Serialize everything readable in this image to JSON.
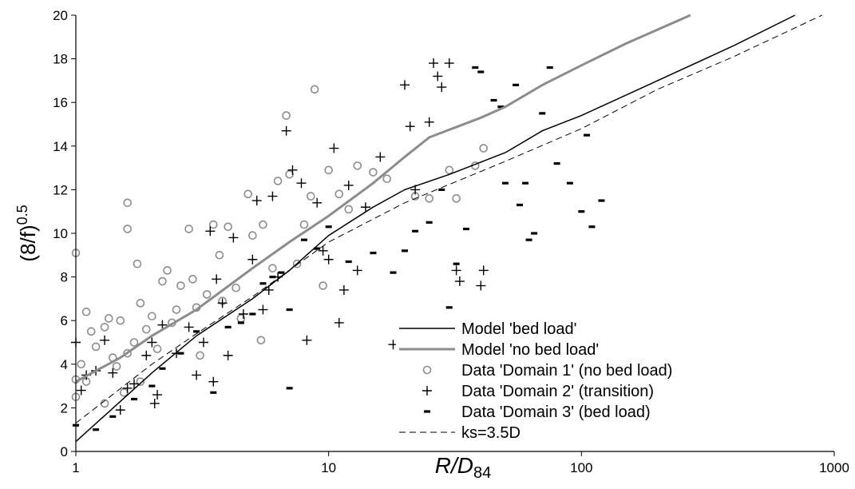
{
  "chart_data": {
    "type": "scatter",
    "xlabel": "R/D",
    "xlabel_sub": "84",
    "ylabel": "(8/f)",
    "ylabel_sup": "0.5",
    "xscale": "log",
    "xlim": [
      1,
      1000
    ],
    "xticks": [
      1,
      10,
      100,
      1000
    ],
    "ylim": [
      0,
      20
    ],
    "yticks": [
      0,
      2,
      4,
      6,
      8,
      10,
      12,
      14,
      16,
      18,
      20
    ],
    "grid": false,
    "legend": "lower right",
    "series": [
      {
        "name": "Model 'bed load'",
        "kind": "line",
        "dash": "solid",
        "line_width": 1.5,
        "color": "#000000",
        "x": [
          1,
          2,
          3,
          5,
          7,
          10,
          15,
          20,
          30,
          50,
          70,
          100,
          200,
          400,
          700
        ],
        "values": [
          0.45,
          3.6,
          5.3,
          7.0,
          8.3,
          9.9,
          11.2,
          12.0,
          12.7,
          13.7,
          14.7,
          15.4,
          17.0,
          18.6,
          20
        ]
      },
      {
        "name": "Model 'no bed load'",
        "kind": "line",
        "dash": "solid",
        "line_width": 3,
        "color": "#8c8c8c",
        "x": [
          1,
          1.5,
          2,
          3,
          5,
          7,
          10,
          15,
          20,
          25,
          40,
          50,
          70,
          100,
          150,
          270
        ],
        "values": [
          3.2,
          4.3,
          5.3,
          6.5,
          8.4,
          9.6,
          10.8,
          12.3,
          13.5,
          14.4,
          15.3,
          15.8,
          16.8,
          17.7,
          18.7,
          20
        ]
      },
      {
        "name": "Data 'Domain 1' (no bed load)",
        "kind": "points",
        "marker": "circle",
        "color": "#8c8c8c",
        "x": [
          1,
          1,
          1,
          1.05,
          1.1,
          1.1,
          1.15,
          1.2,
          1.3,
          1.3,
          1.35,
          1.4,
          1.45,
          1.5,
          1.55,
          1.6,
          1.6,
          1.6,
          1.7,
          1.75,
          1.8,
          1.8,
          1.9,
          2.0,
          2.1,
          2.2,
          2.3,
          2.4,
          2.5,
          2.6,
          2.8,
          2.9,
          3.0,
          3.1,
          3.3,
          3.5,
          3.7,
          3.8,
          4.0,
          4.3,
          4.5,
          4.8,
          5.0,
          5.4,
          5.5,
          6.0,
          6.3,
          6.8,
          7.0,
          7.5,
          8.0,
          8.5,
          8.8,
          9.5,
          10,
          11,
          12,
          13,
          15,
          17,
          22,
          25,
          30,
          32,
          38,
          41
        ],
        "values": [
          9.1,
          3.3,
          2.5,
          4.0,
          6.4,
          3.2,
          5.5,
          4.8,
          5.7,
          2.2,
          6.1,
          4.3,
          3.9,
          6.0,
          2.7,
          11.4,
          10.2,
          4.5,
          5.0,
          8.6,
          3.2,
          6.8,
          5.6,
          6.2,
          4.7,
          7.8,
          8.3,
          5.9,
          6.5,
          7.6,
          10.2,
          7.9,
          6.6,
          4.4,
          7.2,
          10.4,
          9.0,
          6.9,
          10.3,
          7.5,
          6.1,
          11.8,
          9.9,
          5.1,
          10.4,
          8.4,
          12.4,
          15.4,
          12.7,
          8.6,
          10.4,
          11.7,
          16.6,
          7.6,
          12.9,
          11.8,
          11.1,
          13.1,
          12.8,
          12.5,
          11.7,
          11.6,
          12.9,
          11.6,
          13.1,
          13.9
        ]
      },
      {
        "name": "Data 'Domain 2' (transition)",
        "kind": "points",
        "marker": "plus",
        "color": "#000000",
        "x": [
          1,
          1.05,
          1.1,
          1.2,
          1.3,
          1.4,
          1.5,
          1.6,
          1.7,
          1.9,
          2.0,
          2.05,
          2.1,
          2.2,
          2.5,
          2.8,
          3.0,
          3.2,
          3.4,
          3.5,
          3.6,
          3.8,
          4.0,
          4.2,
          4.6,
          5.0,
          5.2,
          5.5,
          5.8,
          6.0,
          6.3,
          6.8,
          7.2,
          7.8,
          8.2,
          9.0,
          9.5,
          10,
          10.5,
          11,
          11.5,
          12,
          13,
          14,
          16,
          18,
          20,
          21,
          22,
          25,
          26,
          27,
          28,
          30,
          32,
          33,
          40,
          41
        ],
        "values": [
          5.0,
          2.8,
          3.5,
          3.7,
          5.1,
          3.6,
          1.9,
          2.9,
          3.1,
          4.4,
          5.0,
          2.2,
          2.6,
          5.8,
          4.5,
          5.7,
          3.5,
          5.0,
          10.1,
          3.2,
          7.9,
          6.8,
          4.4,
          9.8,
          6.3,
          8.8,
          11.5,
          6.5,
          7.4,
          11.7,
          8.0,
          14.7,
          12.9,
          12.3,
          5.1,
          11.4,
          9.2,
          8.8,
          13.9,
          5.9,
          7.4,
          12.2,
          8.3,
          11.2,
          13.5,
          4.9,
          16.8,
          14.9,
          12.0,
          15.1,
          17.8,
          17.2,
          16.7,
          17.8,
          8.3,
          7.8,
          7.6,
          8.3
        ]
      },
      {
        "name": "Data 'Domain 3' (bed load)",
        "kind": "points",
        "marker": "dash",
        "color": "#000000",
        "x": [
          1,
          1.2,
          1.4,
          1.7,
          2.0,
          2.2,
          2.6,
          3.0,
          3.5,
          4.0,
          4.5,
          5.0,
          5.5,
          6.0,
          6.5,
          7.0,
          7.0,
          8,
          9,
          10,
          12,
          15,
          18,
          20,
          22,
          25,
          28,
          30,
          32,
          35,
          38,
          40,
          45,
          48,
          50,
          55,
          57,
          60,
          62,
          65,
          75,
          80,
          100,
          110,
          120,
          105,
          90,
          70
        ],
        "values": [
          1.2,
          1.0,
          1.6,
          2.4,
          3.0,
          3.8,
          4.5,
          5.5,
          2.7,
          5.7,
          5.9,
          6.3,
          7.7,
          8.0,
          8.2,
          2.9,
          6.5,
          9.7,
          9.3,
          10.3,
          8.7,
          9.1,
          8.2,
          9.2,
          10.1,
          10.5,
          12.0,
          6.6,
          8.6,
          10.2,
          17.6,
          17.4,
          16.1,
          15.8,
          12.3,
          16.8,
          11.3,
          12.3,
          9.7,
          10.0,
          17.6,
          13.2,
          11.0,
          10.3,
          11.5,
          14.5,
          12.3,
          15.5
        ]
      },
      {
        "name": "ks=3.5D",
        "kind": "line",
        "dash": "dashed",
        "line_width": 1,
        "color": "#000000",
        "x": [
          1,
          2,
          3,
          5,
          10,
          20,
          50,
          100,
          200,
          400,
          895
        ],
        "values": [
          1.3,
          4.0,
          5.4,
          7.1,
          9.6,
          11.4,
          13.3,
          14.8,
          16.6,
          18.1,
          20
        ]
      }
    ]
  }
}
